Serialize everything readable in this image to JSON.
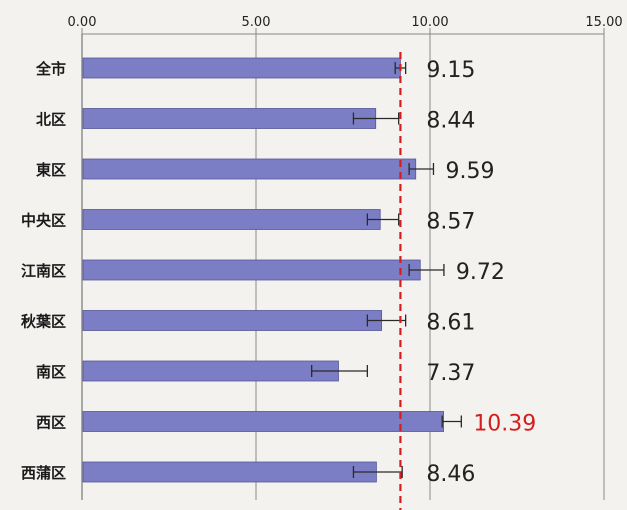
{
  "chart_data": {
    "type": "bar",
    "orientation": "horizontal",
    "xlim": [
      0,
      15
    ],
    "x_ticks": [
      "0.00",
      "5.00",
      "10.00",
      "15.00"
    ],
    "x_tick_values": [
      0,
      5,
      10,
      15
    ],
    "grid": "vertical",
    "categories": [
      "全市",
      "北区",
      "東区",
      "中央区",
      "江南区",
      "秋葉区",
      "南区",
      "西区",
      "西蒲区"
    ],
    "values": [
      9.15,
      8.44,
      9.59,
      8.57,
      9.72,
      8.61,
      7.37,
      10.39,
      8.46
    ],
    "value_labels": [
      "9.15",
      "8.44",
      "9.59",
      "8.57",
      "9.72",
      "8.61",
      "7.37",
      "10.39",
      "8.46"
    ],
    "error_low": [
      9.0,
      7.8,
      9.4,
      8.2,
      9.4,
      8.2,
      6.6,
      10.35,
      7.8
    ],
    "error_high": [
      9.3,
      9.1,
      10.1,
      9.1,
      10.4,
      9.3,
      8.2,
      10.9,
      9.2
    ],
    "reference_line": 9.15,
    "highlight_index": 7,
    "colors": {
      "bar": "#7b7ec4",
      "bar_edge": "#55579a",
      "reference_line": "#d21e1e",
      "highlight_label": "#d21e1e",
      "grid": "#8a8a8a",
      "axis": "#888888",
      "text": "#222222",
      "label": "#1a1a1a"
    }
  }
}
